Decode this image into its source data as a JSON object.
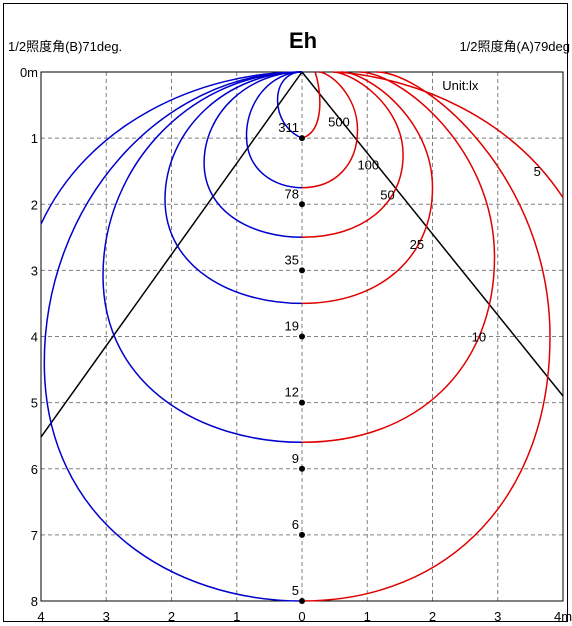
{
  "header": {
    "left": "1/2照度角(B)71deg.",
    "title": "Eh",
    "right": "1/2照度角(A)79deg"
  },
  "chart_data": {
    "type": "isolux",
    "title": "Eh",
    "unit_label": "Unit:lx",
    "x_ticks": [
      "4",
      "3",
      "2",
      "1",
      "0",
      "1",
      "2",
      "3",
      "4m"
    ],
    "y_ticks": [
      "0m",
      "1",
      "2",
      "3",
      "4",
      "5",
      "6",
      "7",
      "8"
    ],
    "xlim": [
      -4,
      4
    ],
    "ylim": [
      0,
      8
    ],
    "grid": true,
    "half_angle_B_deg": 71,
    "half_angle_A_deg": 79,
    "center_points": [
      {
        "y": 1,
        "lux": "311"
      },
      {
        "y": 2,
        "lux": "78"
      },
      {
        "y": 3,
        "lux": "35"
      },
      {
        "y": 4,
        "lux": "19"
      },
      {
        "y": 5,
        "lux": "12"
      },
      {
        "y": 6,
        "lux": "9"
      },
      {
        "y": 7,
        "lux": "6"
      },
      {
        "y": 8,
        "lux": "5"
      }
    ],
    "contour_labels": [
      {
        "lux": "500",
        "x": 0.4,
        "y": 0.75
      },
      {
        "lux": "100",
        "x": 0.85,
        "y": 1.4
      },
      {
        "lux": "50",
        "x": 1.2,
        "y": 1.85
      },
      {
        "lux": "25",
        "x": 1.65,
        "y": 2.6
      },
      {
        "lux": "10",
        "x": 2.6,
        "y": 4
      },
      {
        "lux": "5",
        "x": 3.55,
        "y": 1.5
      }
    ],
    "colors": {
      "side_a": "#e00000",
      "side_b": "#0000cc",
      "grid": "#808080",
      "axis": "#000000"
    }
  }
}
